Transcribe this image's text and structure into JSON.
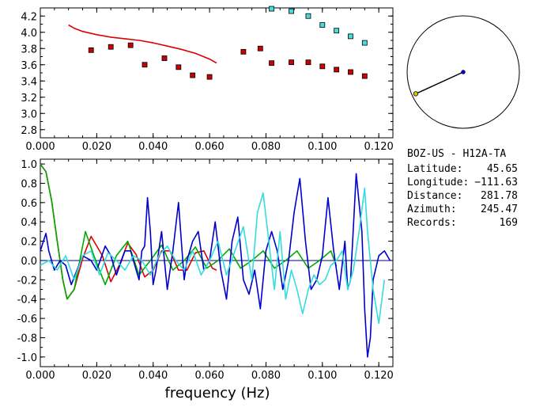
{
  "chart_data": [
    {
      "type": "scatter",
      "xlim": [
        0.0,
        0.125
      ],
      "ylim": [
        2.7,
        4.3
      ],
      "x_ticks": [
        0.0,
        0.02,
        0.04,
        0.06,
        0.08,
        0.1,
        0.12
      ],
      "x_tick_labels": [
        "0.000",
        "0.020",
        "0.040",
        "0.060",
        "0.080",
        "0.100",
        "0.120"
      ],
      "y_ticks": [
        2.8,
        3.0,
        3.2,
        3.4,
        3.6,
        3.8,
        4.0,
        4.2
      ],
      "y_tick_labels": [
        "2.8",
        "3.0",
        "3.2",
        "3.4",
        "3.6",
        "3.8",
        "4.0",
        "4.2"
      ],
      "series": [
        {
          "color": "#cc0000",
          "marker": "square",
          "x": [
            0.018,
            0.025,
            0.032,
            0.037,
            0.044,
            0.049,
            0.054,
            0.06,
            0.072,
            0.078,
            0.082,
            0.089,
            0.095,
            0.1,
            0.105,
            0.11,
            0.115
          ],
          "y": [
            3.78,
            3.82,
            3.84,
            3.6,
            3.68,
            3.57,
            3.47,
            3.45,
            3.76,
            3.8,
            3.62,
            3.63,
            3.63,
            3.58,
            3.54,
            3.51,
            3.46
          ]
        },
        {
          "color": "#44dddd",
          "marker": "square",
          "x": [
            0.082,
            0.089,
            0.095,
            0.1,
            0.105,
            0.11,
            0.115
          ],
          "y": [
            4.29,
            4.26,
            4.2,
            4.09,
            4.02,
            3.95,
            3.87
          ]
        },
        {
          "color": "#dd0000",
          "marker": "line",
          "x": [
            0.01,
            0.012,
            0.015,
            0.02,
            0.025,
            0.03,
            0.035,
            0.04,
            0.045,
            0.05,
            0.055,
            0.06,
            0.0625
          ],
          "y": [
            4.09,
            4.05,
            4.01,
            3.97,
            3.94,
            3.92,
            3.9,
            3.87,
            3.83,
            3.79,
            3.74,
            3.67,
            3.62
          ]
        }
      ]
    },
    {
      "type": "line",
      "xlim": [
        0.0,
        0.125
      ],
      "ylim": [
        -1.1,
        1.05
      ],
      "xlabel": "frequency (Hz)",
      "x_ticks": [
        0.0,
        0.02,
        0.04,
        0.06,
        0.08,
        0.1,
        0.12
      ],
      "x_tick_labels": [
        "0.000",
        "0.020",
        "0.040",
        "0.060",
        "0.080",
        "0.100",
        "0.120"
      ],
      "y_ticks": [
        -1.0,
        -0.8,
        -0.6,
        -0.4,
        -0.2,
        0.0,
        0.2,
        0.4,
        0.6,
        0.8,
        1.0
      ],
      "y_tick_labels": [
        "-1.0",
        "-0.8",
        "-0.6",
        "-0.4",
        "-0.2",
        "0.0",
        "0.2",
        "0.4",
        "0.6",
        "0.8",
        "1.0"
      ],
      "zero_line_color": "#000080",
      "series": [
        {
          "color": "#dd0000",
          "x": [
            0.0,
            0.002,
            0.004,
            0.006,
            0.008,
            0.0095,
            0.012,
            0.015,
            0.018,
            0.022,
            0.025,
            0.028,
            0.031,
            0.034,
            0.037,
            0.04,
            0.043,
            0.046,
            0.049,
            0.052,
            0.055,
            0.058,
            0.061,
            0.0625
          ],
          "y": [
            1.0,
            0.92,
            0.62,
            0.2,
            -0.2,
            -0.4,
            -0.3,
            0.02,
            0.25,
            0.05,
            -0.22,
            -0.05,
            0.18,
            0.06,
            -0.17,
            -0.1,
            0.1,
            0.1,
            -0.1,
            -0.1,
            0.08,
            0.1,
            -0.08,
            -0.1
          ]
        },
        {
          "color": "#00aa00",
          "x": [
            0.0,
            0.002,
            0.004,
            0.006,
            0.008,
            0.0095,
            0.012,
            0.016,
            0.019,
            0.023,
            0.027,
            0.031,
            0.035,
            0.039,
            0.043,
            0.047,
            0.051,
            0.055,
            0.059,
            0.063,
            0.067,
            0.071,
            0.075,
            0.079,
            0.083,
            0.087,
            0.091,
            0.095,
            0.099,
            0.103,
            0.105
          ],
          "y": [
            1.0,
            0.92,
            0.62,
            0.2,
            -0.2,
            -0.4,
            -0.3,
            0.3,
            0.05,
            -0.25,
            0.05,
            0.2,
            -0.15,
            0.0,
            0.16,
            -0.1,
            0.0,
            0.14,
            -0.08,
            0.0,
            0.12,
            -0.08,
            0.0,
            0.1,
            -0.08,
            0.0,
            0.1,
            -0.08,
            0.0,
            0.1,
            -0.06
          ]
        },
        {
          "color": "#0000cc",
          "x": [
            0.0,
            0.002,
            0.003,
            0.005,
            0.007,
            0.009,
            0.011,
            0.013,
            0.015,
            0.018,
            0.02,
            0.023,
            0.025,
            0.027,
            0.03,
            0.032,
            0.034,
            0.035,
            0.036,
            0.037,
            0.038,
            0.039,
            0.04,
            0.041,
            0.043,
            0.045,
            0.047,
            0.049,
            0.05,
            0.051,
            0.052,
            0.054,
            0.056,
            0.058,
            0.06,
            0.062,
            0.064,
            0.066,
            0.068,
            0.07,
            0.072,
            0.074,
            0.076,
            0.078,
            0.08,
            0.082,
            0.084,
            0.086,
            0.088,
            0.09,
            0.092,
            0.094,
            0.096,
            0.098,
            0.1,
            0.102,
            0.104,
            0.106,
            0.108,
            0.109,
            0.11,
            0.112,
            0.114,
            0.115,
            0.116,
            0.117,
            0.118,
            0.12,
            0.122,
            0.124
          ],
          "y": [
            0.1,
            0.28,
            0.1,
            -0.1,
            0.0,
            -0.05,
            -0.25,
            -0.1,
            0.05,
            0.0,
            -0.1,
            0.15,
            0.05,
            -0.15,
            0.1,
            0.1,
            -0.1,
            -0.2,
            0.1,
            0.15,
            0.65,
            0.3,
            -0.25,
            -0.1,
            0.3,
            -0.3,
            0.1,
            0.6,
            0.2,
            -0.2,
            0.0,
            0.2,
            0.3,
            -0.1,
            0.0,
            0.4,
            -0.1,
            -0.4,
            0.2,
            0.45,
            -0.2,
            -0.35,
            -0.1,
            -0.5,
            0.1,
            0.3,
            0.1,
            -0.3,
            0.0,
            0.5,
            0.85,
            0.2,
            -0.3,
            -0.2,
            0.05,
            0.65,
            0.1,
            -0.3,
            0.2,
            -0.3,
            -0.2,
            0.9,
            0.3,
            -0.5,
            -1.0,
            -0.8,
            -0.2,
            0.05,
            0.1,
            0.0
          ]
        },
        {
          "color": "#33dddd",
          "x": [
            0.0,
            0.003,
            0.006,
            0.009,
            0.012,
            0.015,
            0.018,
            0.021,
            0.024,
            0.027,
            0.03,
            0.033,
            0.036,
            0.039,
            0.042,
            0.045,
            0.048,
            0.051,
            0.054,
            0.057,
            0.06,
            0.063,
            0.066,
            0.069,
            0.072,
            0.075,
            0.077,
            0.079,
            0.081,
            0.083,
            0.085,
            0.087,
            0.089,
            0.091,
            0.093,
            0.095,
            0.097,
            0.099,
            0.101,
            0.103,
            0.105,
            0.107,
            0.109,
            0.111,
            0.113,
            0.115,
            0.116,
            0.118,
            0.12,
            0.122
          ],
          "y": [
            -0.05,
            0.0,
            -0.1,
            0.05,
            -0.2,
            0.05,
            0.1,
            -0.15,
            0.08,
            0.0,
            -0.1,
            0.05,
            0.0,
            -0.15,
            0.05,
            0.15,
            0.0,
            -0.1,
            0.1,
            -0.15,
            0.0,
            0.2,
            -0.15,
            0.1,
            0.35,
            -0.2,
            0.5,
            0.7,
            0.2,
            -0.3,
            0.3,
            -0.4,
            -0.1,
            -0.3,
            -0.55,
            -0.3,
            -0.15,
            -0.25,
            -0.2,
            -0.05,
            0.0,
            0.1,
            -0.3,
            -0.1,
            0.3,
            0.75,
            0.3,
            -0.3,
            -0.65,
            -0.2
          ]
        }
      ]
    }
  ],
  "polar": {
    "dot_azimuth": 245.47,
    "dot_radius_fraction": 0.93,
    "center_color": "#0000cc",
    "dot_color": "#cccc00"
  },
  "info": {
    "station": "BOZ-US  - H12A-TA",
    "rows": [
      {
        "label": "Latitude:",
        "value": "45.65"
      },
      {
        "label": "Longitude:",
        "value": "−111.63"
      },
      {
        "label": "Distance:",
        "value": "281.78"
      },
      {
        "label": "Azimuth:",
        "value": "245.47"
      },
      {
        "label": "Records:",
        "value": "169"
      }
    ]
  }
}
